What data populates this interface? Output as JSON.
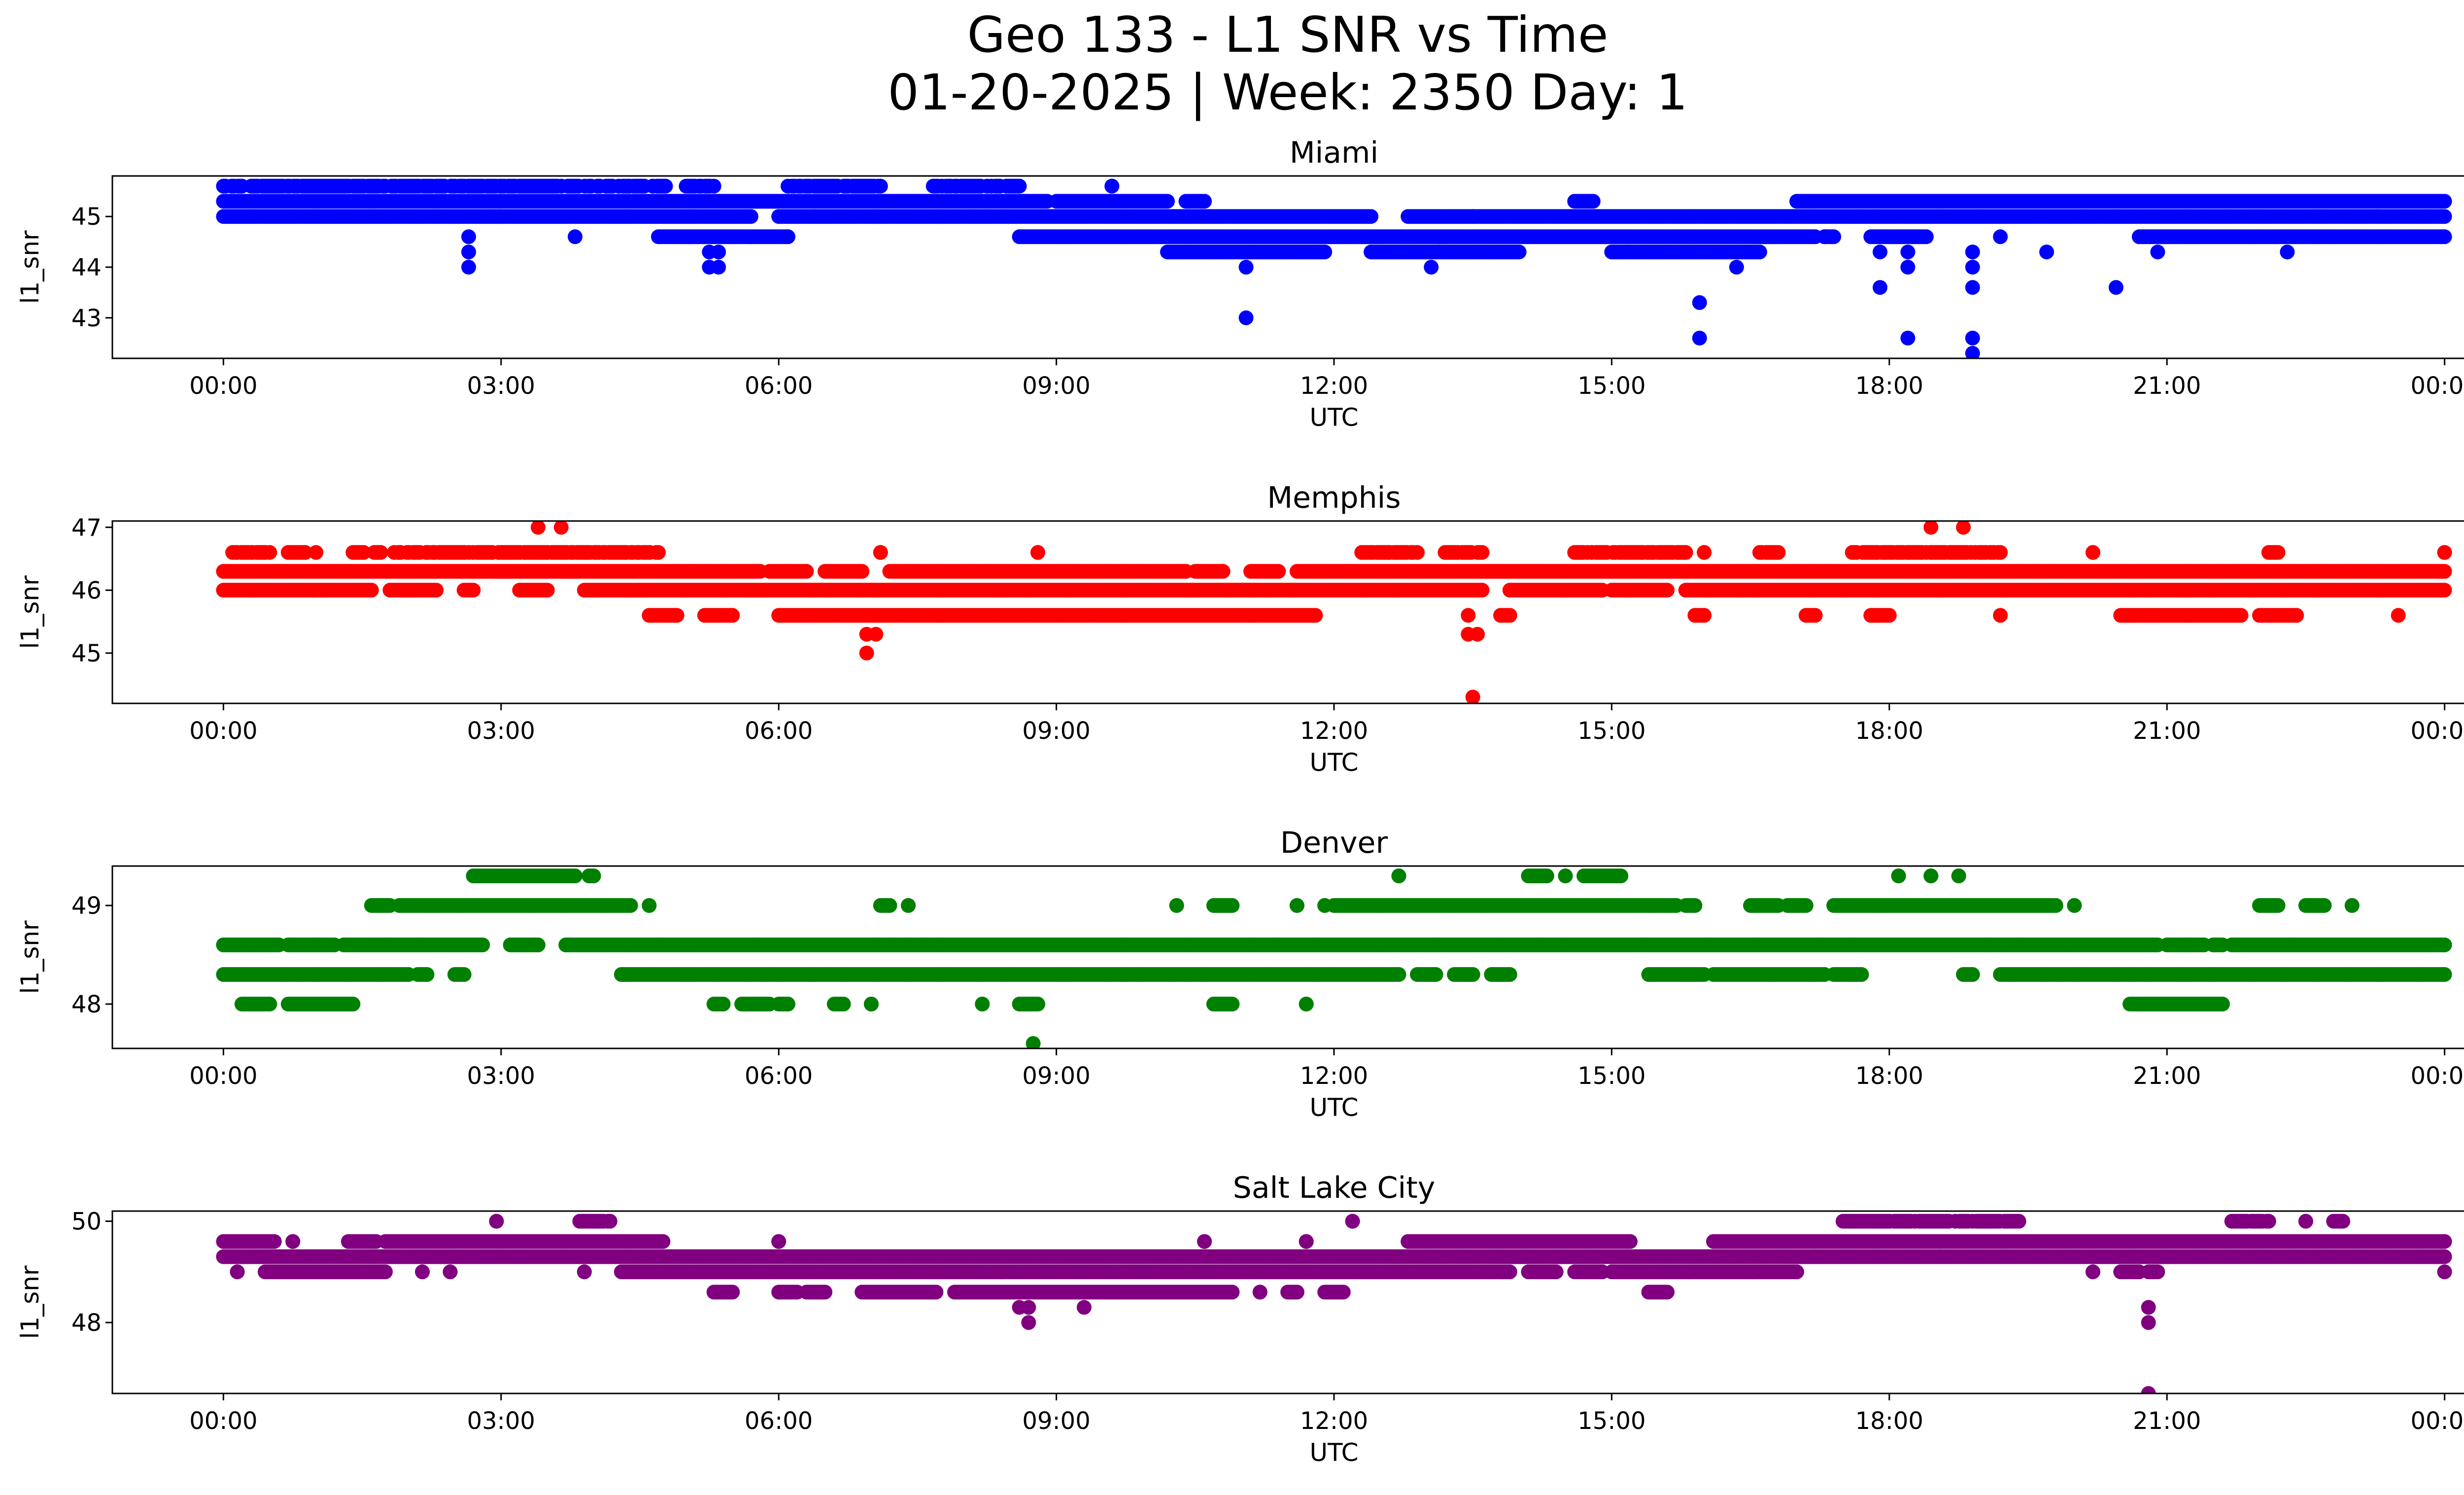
{
  "chart_data": {
    "type": "scatter",
    "title_line1": "Geo 133 - L1 SNR vs Time",
    "title_line2": "01-20-2025 | Week: 2350 Day: 1",
    "xlabel": "UTC",
    "ylabel": "l1_snr",
    "x_unit": "hours since 00:00 UTC",
    "xlim": [
      -1.2,
      25.2
    ],
    "xticks": [
      0,
      3,
      6,
      9,
      12,
      15,
      18,
      21,
      24
    ],
    "xtick_labels": [
      "00:00",
      "03:00",
      "06:00",
      "09:00",
      "12:00",
      "15:00",
      "18:00",
      "21:00",
      "00:00"
    ],
    "panels": [
      {
        "name": "Miami",
        "color": "#0000ff",
        "ylim": [
          42.2,
          45.8
        ],
        "yticks": [
          43,
          44,
          45
        ],
        "ytick_labels": [
          "43",
          "44",
          "45"
        ],
        "bands": [
          {
            "y": 45.6,
            "ranges": [
              [
                0,
                0.2
              ],
              [
                0.3,
                4.8
              ],
              [
                5,
                5.3
              ],
              [
                6.1,
                7.1
              ],
              [
                7.6,
                8.6
              ],
              [
                9.6,
                9.6
              ]
            ],
            "density": 0.8
          },
          {
            "y": 45.3,
            "ranges": [
              [
                0,
                8.9
              ],
              [
                9,
                10.2
              ],
              [
                10.4,
                10.6
              ],
              [
                14.6,
                14.8
              ],
              [
                17,
                24
              ]
            ],
            "density": 1
          },
          {
            "y": 45.0,
            "ranges": [
              [
                0,
                5.7
              ],
              [
                6,
                12.4
              ],
              [
                12.8,
                24
              ]
            ],
            "density": 1
          },
          {
            "y": 44.6,
            "ranges": [
              [
                4.7,
                6.1
              ],
              [
                8.6,
                17.2
              ],
              [
                17.3,
                17.4
              ],
              [
                17.8,
                18.4
              ],
              [
                20.7,
                24
              ]
            ],
            "density": 1
          },
          {
            "y": 44.3,
            "ranges": [
              [
                10.2,
                11.9
              ],
              [
                12.4,
                14.0
              ],
              [
                15.0,
                16.6
              ]
            ],
            "density": 1
          }
        ],
        "points": [
          {
            "x": 2.65,
            "y": 44.6
          },
          {
            "x": 2.65,
            "y": 44.3
          },
          {
            "x": 2.65,
            "y": 44.0
          },
          {
            "x": 3.8,
            "y": 44.6
          },
          {
            "x": 5.25,
            "y": 44.3
          },
          {
            "x": 5.25,
            "y": 44.0
          },
          {
            "x": 5.35,
            "y": 44.0
          },
          {
            "x": 5.35,
            "y": 44.3
          },
          {
            "x": 11.05,
            "y": 44.0
          },
          {
            "x": 11.05,
            "y": 43.0
          },
          {
            "x": 13.05,
            "y": 44.0
          },
          {
            "x": 13.5,
            "y": 45.0
          },
          {
            "x": 15.95,
            "y": 43.3
          },
          {
            "x": 15.95,
            "y": 42.6
          },
          {
            "x": 16.35,
            "y": 44.0
          },
          {
            "x": 17.3,
            "y": 44.6
          },
          {
            "x": 17.9,
            "y": 43.6
          },
          {
            "x": 17.9,
            "y": 44.3
          },
          {
            "x": 18.2,
            "y": 42.6
          },
          {
            "x": 18.2,
            "y": 44.0
          },
          {
            "x": 18.2,
            "y": 44.3
          },
          {
            "x": 18.9,
            "y": 44.3
          },
          {
            "x": 18.9,
            "y": 44.0
          },
          {
            "x": 18.9,
            "y": 43.6
          },
          {
            "x": 18.9,
            "y": 42.6
          },
          {
            "x": 18.9,
            "y": 42.3
          },
          {
            "x": 19.2,
            "y": 44.6
          },
          {
            "x": 19.7,
            "y": 44.3
          },
          {
            "x": 20.45,
            "y": 43.6
          },
          {
            "x": 20.9,
            "y": 44.3
          },
          {
            "x": 22.3,
            "y": 44.3
          }
        ]
      },
      {
        "name": "Memphis",
        "color": "#ff0000",
        "ylim": [
          44.2,
          47.1
        ],
        "yticks": [
          45,
          46,
          47
        ],
        "ytick_labels": [
          "45",
          "46",
          "47"
        ],
        "bands": [
          {
            "y": 46.6,
            "ranges": [
              [
                0.1,
                0.5
              ],
              [
                0.7,
                1.0
              ],
              [
                1.4,
                1.7
              ],
              [
                1.8,
                4.7
              ],
              [
                7.1,
                7.1
              ],
              [
                8.8,
                8.8
              ],
              [
                12.3,
                12.9
              ],
              [
                13.2,
                13.6
              ],
              [
                14.6,
                15.8
              ],
              [
                16.0,
                16.0
              ],
              [
                16.6,
                16.8
              ],
              [
                17.6,
                19.2
              ],
              [
                20.2,
                20.2
              ],
              [
                22.1,
                22.2
              ],
              [
                24.0,
                24.0
              ]
            ],
            "density": 0.8
          },
          {
            "y": 46.3,
            "ranges": [
              [
                0,
                5.8
              ],
              [
                5.9,
                6.3
              ],
              [
                6.5,
                6.9
              ],
              [
                7.2,
                10.4
              ],
              [
                10.5,
                10.8
              ],
              [
                11.1,
                11.4
              ],
              [
                11.6,
                24
              ]
            ],
            "density": 1
          },
          {
            "y": 46.0,
            "ranges": [
              [
                0,
                1.6
              ],
              [
                1.8,
                2.3
              ],
              [
                2.6,
                2.7
              ],
              [
                3.2,
                3.5
              ],
              [
                3.9,
                4.5
              ],
              [
                4.5,
                13.6
              ],
              [
                13.9,
                14.9
              ],
              [
                15.0,
                15.6
              ],
              [
                15.8,
                24
              ]
            ],
            "density": 1
          },
          {
            "y": 45.6,
            "ranges": [
              [
                4.6,
                4.9
              ],
              [
                5.2,
                5.5
              ],
              [
                6.0,
                11.8
              ],
              [
                13.8,
                13.9
              ],
              [
                15.9,
                16.0
              ],
              [
                17.1,
                17.2
              ],
              [
                17.8,
                18.0
              ],
              [
                20.5,
                21.8
              ],
              [
                22.0,
                22.4
              ]
            ],
            "density": 1
          }
        ],
        "points": [
          {
            "x": 3.4,
            "y": 47.0
          },
          {
            "x": 3.65,
            "y": 47.0
          },
          {
            "x": 18.45,
            "y": 47.0
          },
          {
            "x": 18.8,
            "y": 47.0
          },
          {
            "x": 6.95,
            "y": 45.3
          },
          {
            "x": 7.05,
            "y": 45.3
          },
          {
            "x": 6.95,
            "y": 45.0
          },
          {
            "x": 13.45,
            "y": 45.6
          },
          {
            "x": 13.45,
            "y": 45.3
          },
          {
            "x": 13.55,
            "y": 45.3
          },
          {
            "x": 13.5,
            "y": 44.3
          },
          {
            "x": 19.2,
            "y": 45.6
          },
          {
            "x": 23.5,
            "y": 45.6
          }
        ]
      },
      {
        "name": "Denver",
        "color": "#008000",
        "ylim": [
          47.55,
          49.4
        ],
        "yticks": [
          48,
          49
        ],
        "ytick_labels": [
          "48",
          "49"
        ],
        "bands": [
          {
            "y": 49.3,
            "ranges": [
              [
                2.7,
                3.8
              ],
              [
                3.95,
                4.0
              ],
              [
                12.7,
                12.7
              ],
              [
                14.1,
                14.3
              ],
              [
                14.5,
                14.5
              ],
              [
                14.7,
                15.1
              ],
              [
                18.1,
                18.1
              ],
              [
                18.45,
                18.45
              ],
              [
                18.75,
                18.75
              ]
            ],
            "density": 1
          },
          {
            "y": 49.0,
            "ranges": [
              [
                1.6,
                1.8
              ],
              [
                1.9,
                4.4
              ],
              [
                4.6,
                4.6
              ],
              [
                7.1,
                7.2
              ],
              [
                7.4,
                7.4
              ],
              [
                10.3,
                10.3
              ],
              [
                10.7,
                10.9
              ],
              [
                11.6,
                11.6
              ],
              [
                11.9,
                11.9
              ],
              [
                12.0,
                15.7
              ],
              [
                15.8,
                15.9
              ],
              [
                16.5,
                16.8
              ],
              [
                16.9,
                17.1
              ],
              [
                17.4,
                19.8
              ],
              [
                20.0,
                20.0
              ],
              [
                22.0,
                22.2
              ],
              [
                22.5,
                22.7
              ],
              [
                23.0,
                23.0
              ]
            ],
            "density": 1
          },
          {
            "y": 48.6,
            "ranges": [
              [
                0,
                0.6
              ],
              [
                0.7,
                1.2
              ],
              [
                1.3,
                2.8
              ],
              [
                3.1,
                3.4
              ],
              [
                3.7,
                20.9
              ],
              [
                21.0,
                21.4
              ],
              [
                21.5,
                21.6
              ],
              [
                21.7,
                24
              ]
            ],
            "density": 1
          },
          {
            "y": 48.3,
            "ranges": [
              [
                0,
                2.0
              ],
              [
                2.1,
                2.2
              ],
              [
                2.5,
                2.6
              ],
              [
                4.3,
                12.7
              ],
              [
                12.9,
                13.1
              ],
              [
                13.3,
                13.5
              ],
              [
                13.7,
                13.9
              ],
              [
                15.4,
                16.0
              ],
              [
                16.1,
                17.3
              ],
              [
                17.4,
                17.7
              ],
              [
                18.8,
                18.9
              ],
              [
                19.2,
                24
              ]
            ],
            "density": 1
          },
          {
            "y": 48.0,
            "ranges": [
              [
                0.2,
                0.5
              ],
              [
                0.7,
                1.4
              ],
              [
                5.3,
                5.4
              ],
              [
                5.6,
                5.9
              ],
              [
                6.0,
                6.1
              ],
              [
                6.6,
                6.7
              ],
              [
                7.0,
                7.0
              ],
              [
                8.2,
                8.2
              ],
              [
                8.6,
                8.8
              ],
              [
                10.7,
                10.9
              ],
              [
                11.7,
                11.7
              ],
              [
                20.6,
                21.6
              ]
            ],
            "density": 1
          }
        ],
        "points": [
          {
            "x": 8.75,
            "y": 47.6
          }
        ]
      },
      {
        "name": "Salt Lake City",
        "color": "#800080",
        "ylim": [
          46.6,
          50.2
        ],
        "yticks": [
          48,
          50
        ],
        "ytick_labels": [
          "48",
          "50"
        ],
        "bands": [
          {
            "y": 50.0,
            "ranges": [
              [
                2.95,
                2.95
              ],
              [
                3.85,
                4.2
              ],
              [
                12.2,
                12.2
              ],
              [
                17.5,
                19.4
              ],
              [
                21.7,
                22.1
              ],
              [
                22.5,
                22.5
              ],
              [
                22.8,
                22.9
              ]
            ],
            "density": 0.9
          },
          {
            "y": 49.6,
            "ranges": [
              [
                0,
                0.55
              ],
              [
                0.75,
                0.75
              ],
              [
                1.35,
                1.65
              ],
              [
                1.75,
                4.75
              ],
              [
                6.0,
                6.0
              ],
              [
                10.6,
                10.6
              ],
              [
                11.7,
                11.7
              ],
              [
                12.8,
                15.2
              ],
              [
                16.1,
                24
              ]
            ],
            "density": 1
          },
          {
            "y": 49.3,
            "ranges": [
              [
                0,
                24
              ]
            ],
            "density": 1
          },
          {
            "y": 49.0,
            "ranges": [
              [
                0.15,
                0.15
              ],
              [
                0.45,
                1.75
              ],
              [
                2.15,
                2.15
              ],
              [
                2.45,
                2.45
              ],
              [
                3.9,
                3.9
              ],
              [
                4.3,
                13.9
              ],
              [
                14.1,
                14.4
              ],
              [
                14.6,
                14.9
              ],
              [
                15.0,
                17.0
              ],
              [
                20.2,
                20.2
              ],
              [
                20.5,
                20.7
              ],
              [
                20.8,
                20.9
              ],
              [
                24.0,
                24.0
              ]
            ],
            "density": 1
          },
          {
            "y": 48.6,
            "ranges": [
              [
                5.3,
                5.5
              ],
              [
                6.0,
                6.2
              ],
              [
                6.3,
                6.5
              ],
              [
                6.9,
                7.7
              ],
              [
                7.9,
                10.9
              ],
              [
                11.2,
                11.2
              ],
              [
                11.5,
                11.6
              ],
              [
                11.9,
                12.1
              ],
              [
                15.4,
                15.6
              ]
            ],
            "density": 1
          }
        ],
        "points": [
          {
            "x": 8.7,
            "y": 48.3
          },
          {
            "x": 8.7,
            "y": 48.0
          },
          {
            "x": 8.6,
            "y": 48.3
          },
          {
            "x": 9.3,
            "y": 48.3
          },
          {
            "x": 20.8,
            "y": 48.3
          },
          {
            "x": 20.8,
            "y": 48.0
          },
          {
            "x": 20.8,
            "y": 46.6
          }
        ]
      }
    ]
  }
}
